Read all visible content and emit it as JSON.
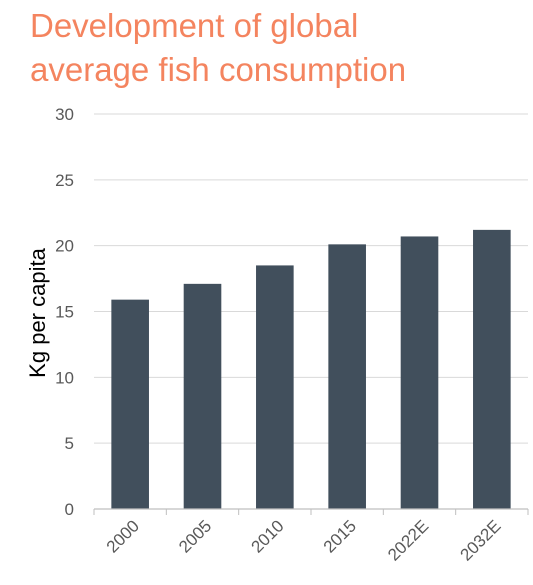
{
  "colors": {
    "title": "#F4845F",
    "bar": "#414F5C",
    "grid": "#D9D9D9",
    "axis": "#BFBFBF",
    "tick_text": "#595959"
  },
  "chart_data": {
    "type": "bar",
    "title": "Development of global average fish consumption",
    "title_lines": [
      "Development of global",
      "average fish consumption"
    ],
    "xlabel": "",
    "ylabel": "Kg per capita",
    "categories": [
      "2000",
      "2005",
      "2010",
      "2015",
      "2022E",
      "2032E"
    ],
    "values": [
      15.9,
      17.1,
      18.5,
      20.1,
      20.7,
      21.2
    ],
    "ylim": [
      0,
      30
    ],
    "yticks": [
      0,
      5,
      10,
      15,
      20,
      25,
      30
    ],
    "grid": true,
    "legend": "none"
  }
}
